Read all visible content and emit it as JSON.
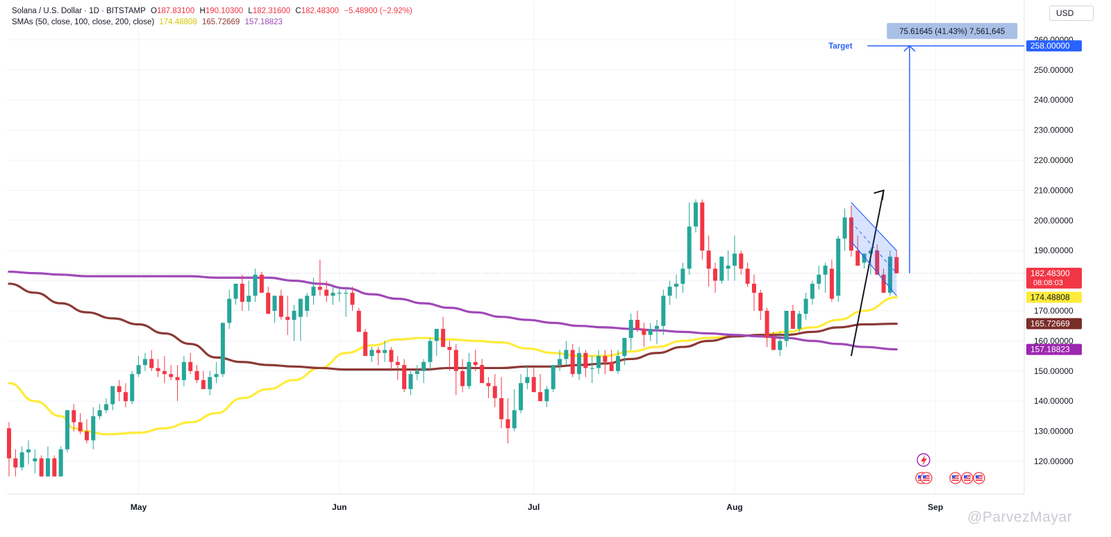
{
  "header": {
    "symbol_title": "Solana / U.S. Dollar · 1D · BITSTAMP",
    "open_label": "O",
    "open_value": "187.83100",
    "high_label": "H",
    "high_value": "190.10300",
    "low_label": "L",
    "low_value": "182.31600",
    "close_label": "C",
    "close_value": "182.48300",
    "change": "−5.48900 (−2.92%)",
    "sma_title": "SMAs (50, close, 100, close, 200, close)",
    "sma50_value": "174.48808",
    "sma100_value": "165.72669",
    "sma200_value": "157.18823"
  },
  "currency_button": "USD",
  "watermark": "@ParvezMayar",
  "colors": {
    "up": "#26a69a",
    "down": "#f23645",
    "sma50": "#ffeb3b",
    "sma100": "#8b3a36",
    "sma200": "#a049b8",
    "target": "#2962ff"
  },
  "chart_data": {
    "type": "candlestick",
    "title": "Solana / U.S. Dollar · 1D · BITSTAMP",
    "y_axis_ticks": [
      120,
      130,
      140,
      150,
      160,
      170,
      180,
      190,
      200,
      210,
      220,
      230,
      240,
      250,
      260
    ],
    "y_axis_tick_labels": [
      "120.00000",
      "130.00000",
      "140.00000",
      "150.00000",
      "160.00000",
      "170.00000",
      "180.00000",
      "190.00000",
      "200.00000",
      "210.00000",
      "220.00000",
      "230.00000",
      "240.00000",
      "250.00000",
      "260.00000"
    ],
    "ylim": [
      113,
      275
    ],
    "x_axis_labels": [
      "May",
      "Jun",
      "Jul",
      "Aug",
      "Sep"
    ],
    "x_axis_label_days": [
      20,
      51,
      81,
      112,
      143
    ],
    "candles_ohlc_by_day": [
      [
        0,
        131,
        133,
        115,
        121
      ],
      [
        1,
        121,
        124,
        115,
        118
      ],
      [
        2,
        118,
        125,
        117,
        123
      ],
      [
        3,
        123,
        127,
        119,
        124
      ],
      [
        4,
        120,
        124,
        116,
        121
      ],
      [
        5,
        121,
        122,
        115,
        115
      ],
      [
        6,
        115,
        125,
        115,
        121
      ],
      [
        7,
        121,
        122,
        115,
        115
      ],
      [
        8,
        115,
        125,
        115,
        124
      ],
      [
        9,
        124,
        137,
        123,
        137
      ],
      [
        10,
        137,
        139,
        130,
        133
      ],
      [
        11,
        133,
        136,
        129,
        130
      ],
      [
        12,
        130,
        134,
        126,
        127
      ],
      [
        13,
        127,
        138,
        124,
        135
      ],
      [
        14,
        135,
        139,
        134,
        137
      ],
      [
        15,
        137,
        141,
        136,
        139
      ],
      [
        16,
        139,
        144,
        137,
        145
      ],
      [
        17,
        145,
        147,
        140,
        143
      ],
      [
        18,
        143,
        146,
        138,
        140
      ],
      [
        19,
        140,
        150,
        139,
        149
      ],
      [
        20,
        149,
        155,
        148,
        152
      ],
      [
        21,
        152,
        156,
        150,
        154
      ],
      [
        22,
        154,
        157,
        150,
        151
      ],
      [
        23,
        151,
        154,
        148,
        150
      ],
      [
        24,
        150,
        155,
        146,
        149
      ],
      [
        25,
        149,
        152,
        147,
        148
      ],
      [
        26,
        148,
        152,
        140,
        147
      ],
      [
        27,
        147,
        155,
        145,
        153
      ],
      [
        28,
        153,
        156,
        149,
        150
      ],
      [
        29,
        150,
        152,
        146,
        147
      ],
      [
        30,
        147,
        150,
        145,
        144
      ],
      [
        31,
        144,
        150,
        142,
        148
      ],
      [
        32,
        148,
        153,
        146,
        149
      ],
      [
        33,
        149,
        166,
        148,
        166
      ],
      [
        34,
        166,
        177,
        164,
        174
      ],
      [
        35,
        174,
        179,
        172,
        179
      ],
      [
        36,
        179,
        182,
        170,
        173
      ],
      [
        37,
        173,
        180,
        170,
        175
      ],
      [
        38,
        175,
        184,
        173,
        182
      ],
      [
        39,
        182,
        183,
        176,
        176
      ],
      [
        40,
        176,
        178,
        169,
        169
      ],
      [
        41,
        170,
        175,
        166,
        175
      ],
      [
        42,
        175,
        177,
        167,
        168
      ],
      [
        43,
        168,
        175,
        162,
        167
      ],
      [
        44,
        167,
        172,
        160,
        170
      ],
      [
        45,
        168,
        174,
        160,
        174
      ],
      [
        46,
        170,
        176,
        168,
        175
      ],
      [
        47,
        175,
        181,
        172,
        178
      ],
      [
        48,
        178,
        187,
        175,
        177
      ],
      [
        49,
        177,
        180,
        173,
        175
      ],
      [
        50,
        175,
        178,
        172,
        176
      ],
      [
        51,
        176,
        178,
        173,
        176
      ],
      [
        52,
        176,
        178,
        168,
        176
      ],
      [
        53,
        176,
        178,
        170,
        172
      ],
      [
        54,
        170,
        171,
        164,
        163
      ],
      [
        55,
        163,
        164,
        155,
        155
      ],
      [
        56,
        155,
        158,
        153,
        157
      ],
      [
        57,
        157,
        158,
        152,
        156
      ],
      [
        58,
        156,
        160,
        153,
        157
      ],
      [
        59,
        157,
        158,
        150,
        153
      ],
      [
        60,
        153,
        155,
        147,
        152
      ],
      [
        61,
        152,
        154,
        143,
        144
      ],
      [
        62,
        144,
        150,
        142,
        149
      ],
      [
        63,
        149,
        152,
        147,
        150
      ],
      [
        64,
        150,
        154,
        146,
        153
      ],
      [
        65,
        153,
        161,
        150,
        160
      ],
      [
        66,
        160,
        163,
        155,
        164
      ],
      [
        67,
        164,
        168,
        158,
        158
      ],
      [
        68,
        158,
        160,
        150,
        157
      ],
      [
        69,
        157,
        159,
        142,
        150
      ],
      [
        70,
        150,
        154,
        143,
        145
      ],
      [
        71,
        145,
        156,
        144,
        153
      ],
      [
        72,
        153,
        157,
        150,
        152
      ],
      [
        73,
        152,
        154,
        147,
        146
      ],
      [
        74,
        146,
        148,
        141,
        145
      ],
      [
        75,
        145,
        149,
        138,
        141
      ],
      [
        76,
        141,
        148,
        131,
        134
      ],
      [
        77,
        134,
        141,
        126,
        131
      ],
      [
        78,
        131,
        144,
        130,
        137
      ],
      [
        79,
        137,
        149,
        136,
        146
      ],
      [
        80,
        146,
        152,
        144,
        148
      ],
      [
        81,
        148,
        151,
        143,
        143
      ],
      [
        82,
        143,
        149,
        140,
        140
      ],
      [
        83,
        140,
        145,
        138,
        144
      ],
      [
        84,
        144,
        152,
        143,
        152
      ],
      [
        85,
        152,
        157,
        150,
        154
      ],
      [
        86,
        154,
        160,
        152,
        157
      ],
      [
        87,
        157,
        159,
        148,
        149
      ],
      [
        88,
        149,
        158,
        147,
        156
      ],
      [
        89,
        156,
        157,
        148,
        151
      ],
      [
        90,
        151,
        155,
        146,
        151
      ],
      [
        91,
        151,
        157,
        149,
        155
      ],
      [
        92,
        155,
        157,
        149,
        153
      ],
      [
        93,
        153,
        157,
        150,
        150
      ],
      [
        94,
        150,
        157,
        149,
        155
      ],
      [
        95,
        155,
        161,
        152,
        161
      ],
      [
        96,
        161,
        169,
        157,
        167
      ],
      [
        97,
        167,
        170,
        163,
        164
      ],
      [
        98,
        164,
        166,
        158,
        162
      ],
      [
        99,
        162,
        166,
        160,
        164
      ],
      [
        100,
        164,
        167,
        159,
        165
      ],
      [
        101,
        165,
        177,
        162,
        175
      ],
      [
        102,
        175,
        180,
        172,
        178
      ],
      [
        103,
        178,
        182,
        174,
        179
      ],
      [
        104,
        179,
        186,
        176,
        184
      ],
      [
        105,
        184,
        206,
        182,
        198
      ],
      [
        106,
        198,
        207,
        196,
        206
      ],
      [
        107,
        206,
        207,
        187,
        190
      ],
      [
        108,
        190,
        195,
        178,
        184
      ],
      [
        109,
        184,
        186,
        176,
        180
      ],
      [
        110,
        180,
        188,
        179,
        188
      ],
      [
        111,
        184,
        190,
        180,
        185
      ],
      [
        112,
        185,
        195,
        180,
        189
      ],
      [
        113,
        189,
        190,
        182,
        184
      ],
      [
        114,
        184,
        186,
        178,
        179
      ],
      [
        115,
        179,
        182,
        170,
        176
      ],
      [
        116,
        176,
        177,
        167,
        170
      ],
      [
        117,
        170,
        171,
        158,
        161
      ],
      [
        118,
        161,
        163,
        157,
        157
      ],
      [
        119,
        157,
        163,
        155,
        160
      ],
      [
        120,
        160,
        170,
        158,
        170
      ],
      [
        121,
        170,
        172,
        164,
        164
      ],
      [
        122,
        164,
        170,
        163,
        169
      ],
      [
        123,
        169,
        176,
        167,
        174
      ],
      [
        124,
        174,
        180,
        172,
        179
      ],
      [
        125,
        179,
        185,
        177,
        182
      ],
      [
        126,
        182,
        186,
        176,
        185
      ],
      [
        127,
        184,
        187,
        173,
        174
      ],
      [
        128,
        175,
        195,
        173,
        194
      ],
      [
        129,
        194,
        204,
        190,
        201
      ],
      [
        130,
        201,
        205,
        188,
        190
      ],
      [
        131,
        190,
        195,
        186,
        185
      ],
      [
        132,
        186,
        187,
        184,
        189
      ],
      [
        133,
        189,
        191,
        182,
        190
      ],
      [
        134,
        190,
        192,
        182,
        182
      ],
      [
        135,
        182,
        184,
        177,
        176
      ],
      [
        136,
        176,
        190,
        175,
        188
      ],
      [
        137,
        187.831,
        190.103,
        182.316,
        182.483
      ]
    ],
    "series": [
      {
        "name": "SMA 50",
        "last_value": 174.48808,
        "points": [
          [
            0,
            146
          ],
          [
            4,
            140
          ],
          [
            8,
            135
          ],
          [
            10,
            131
          ],
          [
            12,
            130
          ],
          [
            15,
            129
          ],
          [
            20,
            129.5
          ],
          [
            24,
            131
          ],
          [
            28,
            133
          ],
          [
            32,
            136
          ],
          [
            36,
            141
          ],
          [
            40,
            144
          ],
          [
            44,
            147
          ],
          [
            48,
            151
          ],
          [
            52,
            156
          ],
          [
            56,
            158.5
          ],
          [
            60,
            160.5
          ],
          [
            64,
            161
          ],
          [
            68,
            160.5
          ],
          [
            72,
            160
          ],
          [
            76,
            159.5
          ],
          [
            80,
            157.5
          ],
          [
            84,
            156
          ],
          [
            88,
            155
          ],
          [
            92,
            155
          ],
          [
            96,
            156.5
          ],
          [
            100,
            158
          ],
          [
            104,
            160
          ],
          [
            108,
            161
          ],
          [
            112,
            161.5
          ],
          [
            116,
            162
          ],
          [
            120,
            163
          ],
          [
            124,
            164.5
          ],
          [
            128,
            167
          ],
          [
            132,
            170
          ],
          [
            137,
            174.5
          ]
        ]
      },
      {
        "name": "SMA 100",
        "last_value": 165.72669,
        "points": [
          [
            0,
            179
          ],
          [
            4,
            176
          ],
          [
            8,
            172.5
          ],
          [
            12,
            169.5
          ],
          [
            16,
            167.5
          ],
          [
            20,
            165.5
          ],
          [
            24,
            162.5
          ],
          [
            28,
            159
          ],
          [
            32,
            154.5
          ],
          [
            36,
            153
          ],
          [
            40,
            152
          ],
          [
            44,
            151.5
          ],
          [
            48,
            151
          ],
          [
            52,
            150.5
          ],
          [
            56,
            150.5
          ],
          [
            60,
            150.5
          ],
          [
            64,
            150.5
          ],
          [
            68,
            151
          ],
          [
            72,
            151
          ],
          [
            76,
            151
          ],
          [
            80,
            151.5
          ],
          [
            84,
            151.5
          ],
          [
            88,
            152
          ],
          [
            92,
            152.5
          ],
          [
            96,
            154
          ],
          [
            100,
            156
          ],
          [
            104,
            158
          ],
          [
            108,
            160
          ],
          [
            112,
            161.5
          ],
          [
            116,
            162
          ],
          [
            120,
            162
          ],
          [
            124,
            163
          ],
          [
            128,
            164.5
          ],
          [
            132,
            165.5
          ],
          [
            137,
            165.7
          ]
        ]
      },
      {
        "name": "SMA 200",
        "last_value": 157.18823,
        "points": [
          [
            0,
            183
          ],
          [
            4,
            182.5
          ],
          [
            8,
            182
          ],
          [
            12,
            181.5
          ],
          [
            16,
            181.5
          ],
          [
            20,
            181.5
          ],
          [
            24,
            181.5
          ],
          [
            28,
            181.5
          ],
          [
            32,
            181
          ],
          [
            36,
            181
          ],
          [
            40,
            181
          ],
          [
            44,
            180
          ],
          [
            48,
            179
          ],
          [
            52,
            177.5
          ],
          [
            56,
            175.5
          ],
          [
            60,
            174
          ],
          [
            64,
            172.5
          ],
          [
            68,
            171
          ],
          [
            72,
            169.5
          ],
          [
            76,
            168
          ],
          [
            80,
            167
          ],
          [
            84,
            166
          ],
          [
            88,
            165
          ],
          [
            92,
            164.5
          ],
          [
            96,
            164
          ],
          [
            100,
            163.5
          ],
          [
            104,
            163
          ],
          [
            108,
            162.5
          ],
          [
            112,
            162
          ],
          [
            116,
            161.5
          ],
          [
            120,
            161
          ],
          [
            124,
            160
          ],
          [
            128,
            159
          ],
          [
            132,
            158
          ],
          [
            137,
            157.2
          ]
        ]
      }
    ],
    "annotations": {
      "target_label": "Target",
      "target_price": 258,
      "target_price_label": "258.00000",
      "measure_label": "75.61645 (41.43%) 7,561,645",
      "last_price_label": "182.48300",
      "countdown": "08:08:03",
      "impulse_arrow": [
        [
          130,
          155
        ],
        [
          135,
          210
        ]
      ],
      "flag_channel_upper": [
        [
          130,
          206
        ],
        [
          137,
          190
        ]
      ],
      "flag_channel_lower": [
        [
          130,
          193
        ],
        [
          137,
          175
        ]
      ],
      "target_arrow": [
        [
          139,
          182.5
        ],
        [
          139,
          258
        ]
      ]
    }
  }
}
